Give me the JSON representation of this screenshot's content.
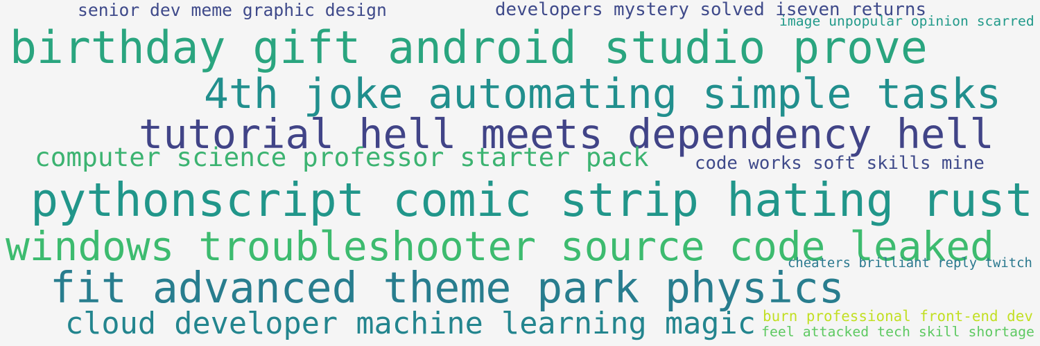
{
  "phrases": [
    {
      "text": "senior dev meme graphic design",
      "color": "#3f4a8a"
    },
    {
      "text": "developers mystery solved iseven returns",
      "color": "#3f4a8a"
    },
    {
      "text": "image unpopular opinion scarred",
      "color": "#229a8a"
    },
    {
      "text": "birthday gift android studio prove",
      "color": "#2aa57f"
    },
    {
      "text": "4th joke automating simple tasks",
      "color": "#218f8d"
    },
    {
      "text": "tutorial hell meets dependency hell",
      "color": "#414487"
    },
    {
      "text": "computer science professor starter pack",
      "color": "#3cb371"
    },
    {
      "text": "code works soft skills mine",
      "color": "#3f4a8a"
    },
    {
      "text": "pythonscript comic strip hating rust",
      "color": "#21968a"
    },
    {
      "text": "windows troubleshooter source code leaked",
      "color": "#3dbb6f"
    },
    {
      "text": "cheaters brilliant reply twitch",
      "color": "#2a788e"
    },
    {
      "text": "fit advanced theme park physics",
      "color": "#287d8e"
    },
    {
      "text": "cloud developer machine learning magic",
      "color": "#23858e"
    },
    {
      "text": "burn professional front-end dev",
      "color": "#c2df23"
    },
    {
      "text": "feel attacked tech skill shortage",
      "color": "#5ec962"
    }
  ]
}
